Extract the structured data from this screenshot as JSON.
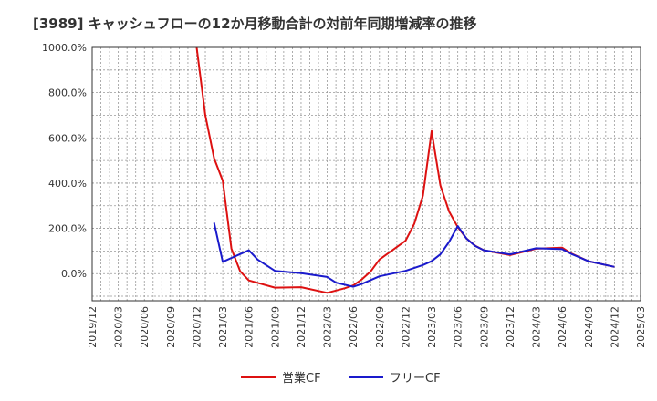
{
  "chart_data": {
    "type": "line",
    "title": "[3989]  キャッシュフローの12か月移動合計の対前年同期増減率の推移",
    "xlabel": "",
    "ylabel": "",
    "ylim": [
      -120,
      1000
    ],
    "y_ticks": [
      0,
      200,
      400,
      600,
      800,
      1000
    ],
    "y_tick_labels": [
      "0.0%",
      "200.0%",
      "400.0%",
      "600.0%",
      "800.0%",
      "1000.0%"
    ],
    "x_tick_labels": [
      "2019/12",
      "2020/03",
      "2020/06",
      "2020/09",
      "2020/12",
      "2021/03",
      "2021/06",
      "2021/09",
      "2021/12",
      "2022/03",
      "2022/06",
      "2022/09",
      "2022/12",
      "2023/03",
      "2023/06",
      "2023/09",
      "2023/12",
      "2024/03",
      "2024/06",
      "2024/09",
      "2024/12",
      "2025/03"
    ],
    "grid": true,
    "legend_position": "bottom",
    "series": [
      {
        "name": "営業CF",
        "color": "#dd1111",
        "points": [
          [
            "2020/12",
            1000
          ],
          [
            "2021/01",
            700
          ],
          [
            "2021/02",
            510
          ],
          [
            "2021/03",
            410
          ],
          [
            "2021/04",
            110
          ],
          [
            "2021/05",
            10
          ],
          [
            "2021/06",
            -30
          ],
          [
            "2021/09",
            -62
          ],
          [
            "2021/12",
            -60
          ],
          [
            "2022/03",
            -85
          ],
          [
            "2022/05",
            -65
          ],
          [
            "2022/06",
            -52
          ],
          [
            "2022/07",
            -25
          ],
          [
            "2022/08",
            10
          ],
          [
            "2022/09",
            62
          ],
          [
            "2022/12",
            145
          ],
          [
            "2023/01",
            220
          ],
          [
            "2023/02",
            345
          ],
          [
            "2023/03",
            630
          ],
          [
            "2023/04",
            390
          ],
          [
            "2023/05",
            275
          ],
          [
            "2023/06",
            205
          ],
          [
            "2023/07",
            155
          ],
          [
            "2023/08",
            123
          ],
          [
            "2023/09",
            103
          ],
          [
            "2023/12",
            82
          ],
          [
            "2024/03",
            110
          ],
          [
            "2024/06",
            115
          ],
          [
            "2024/07",
            90
          ],
          [
            "2024/09",
            55
          ],
          [
            "2024/12",
            30
          ]
        ]
      },
      {
        "name": "フリーCF",
        "color": "#1a1acc",
        "points": [
          [
            "2021/02",
            225
          ],
          [
            "2021/03",
            52
          ],
          [
            "2021/06",
            103
          ],
          [
            "2021/07",
            62
          ],
          [
            "2021/09",
            12
          ],
          [
            "2021/12",
            2
          ],
          [
            "2022/03",
            -15
          ],
          [
            "2022/04",
            -40
          ],
          [
            "2022/06",
            -58
          ],
          [
            "2022/07",
            -45
          ],
          [
            "2022/09",
            -12
          ],
          [
            "2022/12",
            12
          ],
          [
            "2023/02",
            38
          ],
          [
            "2023/03",
            55
          ],
          [
            "2023/04",
            85
          ],
          [
            "2023/05",
            140
          ],
          [
            "2023/06",
            210
          ],
          [
            "2023/07",
            155
          ],
          [
            "2023/08",
            122
          ],
          [
            "2023/09",
            103
          ],
          [
            "2023/12",
            85
          ],
          [
            "2024/03",
            112
          ],
          [
            "2024/06",
            108
          ],
          [
            "2024/07",
            88
          ],
          [
            "2024/09",
            55
          ],
          [
            "2024/12",
            30
          ]
        ]
      }
    ]
  }
}
